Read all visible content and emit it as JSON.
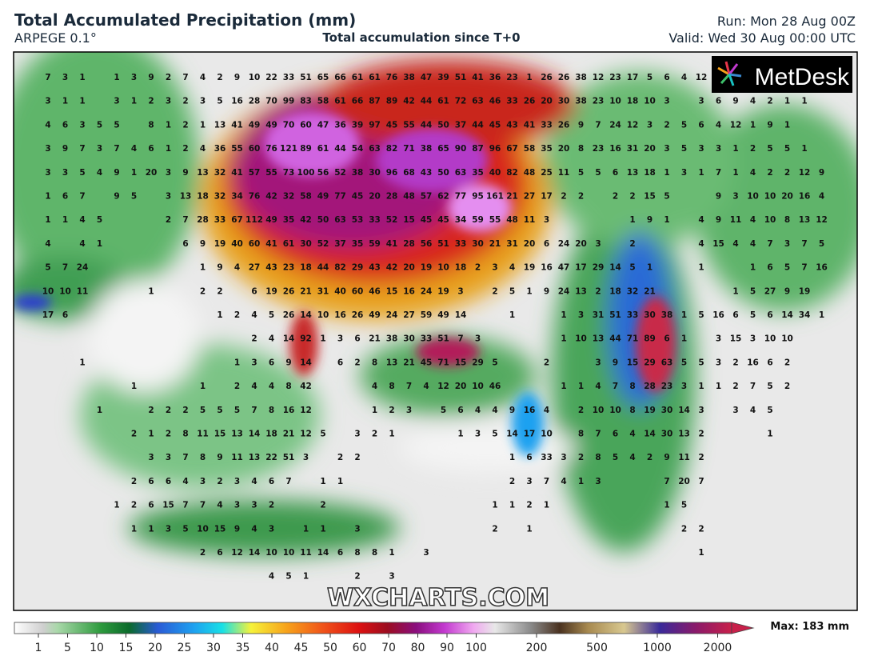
{
  "header": {
    "title": "Total Accumulated Precipitation (mm)",
    "model": "ARPEGE 0.1°",
    "subtitle": "Total accumulation since T+0",
    "run": "Run: Mon 28 Aug 00Z",
    "valid": "Valid: Wed 30 Aug 00:00 UTC"
  },
  "logo": "MetDesk",
  "watermark": "WXCHARTS.COM",
  "legend": {
    "ticks": [
      1,
      5,
      10,
      15,
      20,
      25,
      30,
      35,
      40,
      45,
      50,
      60,
      70,
      80,
      90,
      100,
      200,
      500,
      1000,
      2000
    ],
    "max_label": "Max: 183 mm"
  },
  "station_values": {
    "rows": [
      [
        7,
        3,
        1,
        null,
        1,
        3,
        9,
        2,
        7,
        4,
        2,
        9,
        10,
        22,
        33,
        51,
        65,
        66,
        61,
        61,
        76,
        38,
        47,
        39,
        51,
        41,
        36,
        23,
        1,
        26,
        26,
        38,
        12,
        23,
        17,
        5,
        6,
        4,
        12
      ],
      [
        3,
        1,
        1,
        null,
        3,
        1,
        2,
        3,
        2,
        3,
        5,
        16,
        28,
        70,
        99,
        83,
        58,
        61,
        66,
        87,
        89,
        42,
        44,
        61,
        72,
        63,
        46,
        33,
        26,
        20,
        30,
        38,
        23,
        10,
        18,
        10,
        3,
        null,
        3,
        6,
        9,
        4,
        2,
        1,
        1
      ],
      [
        4,
        6,
        3,
        5,
        5,
        null,
        8,
        1,
        2,
        1,
        13,
        41,
        49,
        49,
        70,
        60,
        47,
        36,
        39,
        97,
        45,
        55,
        44,
        50,
        37,
        44,
        45,
        43,
        41,
        33,
        26,
        9,
        7,
        24,
        12,
        3,
        2,
        5,
        6,
        4,
        12,
        1,
        9,
        1
      ],
      [
        3,
        9,
        7,
        3,
        7,
        4,
        6,
        1,
        2,
        4,
        36,
        55,
        60,
        76,
        121,
        89,
        61,
        44,
        54,
        63,
        82,
        71,
        38,
        65,
        90,
        87,
        96,
        67,
        58,
        35,
        20,
        8,
        23,
        16,
        31,
        20,
        3,
        5,
        3,
        3,
        1,
        2,
        5,
        5,
        1
      ],
      [
        3,
        3,
        5,
        4,
        9,
        1,
        20,
        3,
        9,
        13,
        32,
        41,
        57,
        55,
        73,
        100,
        56,
        52,
        38,
        30,
        96,
        68,
        43,
        50,
        63,
        35,
        40,
        82,
        48,
        25,
        11,
        5,
        5,
        6,
        13,
        18,
        1,
        3,
        1,
        7,
        1,
        4,
        2,
        2,
        12,
        9
      ],
      [
        1,
        6,
        7,
        null,
        9,
        5,
        null,
        3,
        13,
        18,
        32,
        34,
        76,
        42,
        32,
        58,
        49,
        77,
        45,
        20,
        28,
        48,
        57,
        62,
        77,
        95,
        161,
        21,
        27,
        17,
        2,
        2,
        null,
        2,
        2,
        15,
        5,
        null,
        null,
        9,
        3,
        10,
        10,
        20,
        16,
        4
      ],
      [
        1,
        1,
        4,
        5,
        null,
        null,
        null,
        2,
        7,
        28,
        33,
        67,
        112,
        49,
        35,
        42,
        50,
        63,
        53,
        33,
        52,
        15,
        45,
        45,
        34,
        59,
        55,
        48,
        11,
        3,
        null,
        null,
        null,
        null,
        1,
        9,
        1,
        null,
        4,
        9,
        11,
        4,
        10,
        8,
        13,
        12
      ],
      [
        4,
        null,
        4,
        1,
        null,
        null,
        null,
        null,
        6,
        9,
        19,
        40,
        60,
        41,
        61,
        30,
        52,
        37,
        35,
        59,
        41,
        28,
        56,
        51,
        33,
        30,
        21,
        31,
        20,
        6,
        24,
        20,
        3,
        null,
        2,
        null,
        null,
        null,
        4,
        15,
        4,
        4,
        7,
        3,
        7,
        5
      ],
      [
        5,
        7,
        24,
        null,
        null,
        null,
        null,
        null,
        null,
        1,
        9,
        4,
        27,
        43,
        23,
        18,
        44,
        82,
        29,
        43,
        42,
        20,
        19,
        10,
        18,
        2,
        3,
        4,
        19,
        16,
        47,
        17,
        29,
        14,
        5,
        1,
        null,
        null,
        1,
        null,
        null,
        1,
        6,
        5,
        7,
        16
      ],
      [
        10,
        10,
        11,
        null,
        null,
        null,
        1,
        null,
        null,
        2,
        2,
        null,
        6,
        19,
        26,
        21,
        31,
        40,
        60,
        46,
        15,
        16,
        24,
        19,
        3,
        null,
        2,
        5,
        1,
        9,
        24,
        13,
        2,
        18,
        32,
        21,
        null,
        null,
        null,
        null,
        1,
        5,
        27,
        9,
        19
      ],
      [
        17,
        6,
        null,
        null,
        null,
        null,
        null,
        null,
        null,
        null,
        1,
        2,
        4,
        5,
        26,
        14,
        10,
        16,
        26,
        49,
        24,
        27,
        59,
        49,
        14,
        null,
        null,
        1,
        null,
        null,
        1,
        3,
        31,
        51,
        33,
        30,
        38,
        1,
        5,
        16,
        6,
        5,
        6,
        14,
        34,
        1
      ],
      [
        null,
        null,
        null,
        null,
        null,
        null,
        null,
        null,
        null,
        null,
        null,
        null,
        2,
        4,
        14,
        92,
        1,
        3,
        6,
        21,
        38,
        30,
        33,
        51,
        7,
        3,
        null,
        null,
        null,
        null,
        1,
        10,
        13,
        44,
        71,
        89,
        6,
        1,
        null,
        3,
        15,
        3,
        10,
        10
      ],
      [
        null,
        null,
        1,
        null,
        null,
        null,
        null,
        null,
        null,
        null,
        null,
        1,
        3,
        6,
        9,
        14,
        null,
        6,
        2,
        8,
        13,
        21,
        45,
        71,
        15,
        29,
        5,
        null,
        null,
        2,
        null,
        null,
        3,
        9,
        15,
        29,
        63,
        5,
        5,
        3,
        2,
        16,
        6,
        2
      ],
      [
        null,
        null,
        null,
        null,
        null,
        1,
        null,
        null,
        null,
        1,
        null,
        2,
        4,
        4,
        8,
        42,
        null,
        null,
        null,
        4,
        8,
        7,
        4,
        12,
        20,
        10,
        46,
        null,
        null,
        null,
        1,
        1,
        4,
        7,
        8,
        28,
        23,
        3,
        1,
        1,
        2,
        7,
        5,
        2
      ],
      [
        null,
        null,
        null,
        1,
        null,
        null,
        2,
        2,
        2,
        5,
        5,
        5,
        7,
        8,
        16,
        12,
        null,
        null,
        null,
        1,
        2,
        3,
        null,
        5,
        6,
        4,
        4,
        9,
        16,
        4,
        null,
        2,
        10,
        10,
        8,
        19,
        30,
        14,
        3,
        null,
        3,
        4,
        5
      ],
      [
        null,
        null,
        null,
        null,
        null,
        2,
        1,
        2,
        8,
        11,
        15,
        13,
        14,
        18,
        21,
        12,
        5,
        null,
        3,
        2,
        1,
        null,
        null,
        null,
        1,
        3,
        5,
        14,
        17,
        10,
        null,
        8,
        7,
        6,
        4,
        14,
        30,
        13,
        2,
        null,
        null,
        null,
        1
      ],
      [
        null,
        null,
        null,
        null,
        null,
        null,
        3,
        3,
        7,
        8,
        9,
        11,
        13,
        22,
        51,
        3,
        null,
        2,
        2,
        null,
        null,
        null,
        null,
        null,
        null,
        null,
        null,
        1,
        6,
        33,
        3,
        2,
        8,
        5,
        4,
        2,
        9,
        11,
        2
      ],
      [
        null,
        null,
        null,
        null,
        null,
        2,
        6,
        6,
        4,
        3,
        2,
        3,
        4,
        6,
        7,
        null,
        1,
        1,
        null,
        null,
        null,
        null,
        null,
        null,
        null,
        null,
        null,
        2,
        3,
        7,
        4,
        1,
        3,
        null,
        null,
        null,
        7,
        20,
        7
      ],
      [
        null,
        null,
        null,
        null,
        1,
        2,
        6,
        15,
        7,
        7,
        4,
        3,
        3,
        2,
        null,
        null,
        2,
        null,
        null,
        null,
        null,
        null,
        null,
        null,
        null,
        null,
        1,
        1,
        2,
        1,
        null,
        null,
        null,
        null,
        null,
        null,
        1,
        5
      ],
      [
        null,
        null,
        null,
        null,
        null,
        1,
        1,
        3,
        5,
        10,
        15,
        9,
        4,
        3,
        null,
        1,
        1,
        null,
        3,
        null,
        null,
        null,
        null,
        null,
        null,
        null,
        2,
        null,
        1,
        null,
        null,
        null,
        null,
        null,
        null,
        null,
        null,
        2,
        2
      ],
      [
        null,
        null,
        null,
        null,
        null,
        null,
        null,
        null,
        null,
        2,
        6,
        12,
        14,
        10,
        10,
        11,
        14,
        6,
        8,
        8,
        1,
        null,
        3,
        null,
        null,
        null,
        null,
        null,
        null,
        null,
        null,
        null,
        null,
        null,
        null,
        null,
        null,
        null,
        1
      ],
      [
        null,
        null,
        null,
        null,
        null,
        null,
        null,
        null,
        null,
        null,
        null,
        null,
        null,
        4,
        5,
        1,
        null,
        null,
        2,
        null,
        3
      ]
    ]
  }
}
